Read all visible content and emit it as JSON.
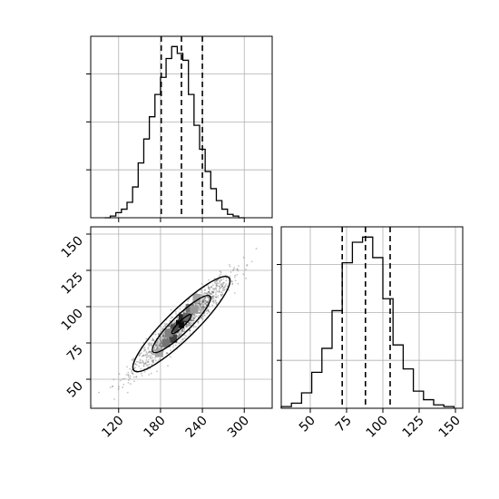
{
  "chart_data": {
    "type": "corner",
    "parameters": [
      "",
      ""
    ],
    "colors": {
      "line": "#000000",
      "grid": "#b0b0b0",
      "background": "#ffffff",
      "scatter": "#555555"
    },
    "grid": true,
    "panels": [
      {
        "id": "hist-x",
        "type": "histogram",
        "position": "top-left",
        "xlim": [
          80,
          340
        ],
        "ylim": [
          0,
          1.06
        ],
        "quantile_lines": [
          181,
          210,
          240
        ],
        "bins": [
          {
            "x0": 100,
            "x1": 108,
            "y": 0.0
          },
          {
            "x0": 108,
            "x1": 116,
            "y": 0.01
          },
          {
            "x0": 116,
            "x1": 124,
            "y": 0.03
          },
          {
            "x0": 124,
            "x1": 132,
            "y": 0.05
          },
          {
            "x0": 132,
            "x1": 140,
            "y": 0.09
          },
          {
            "x0": 140,
            "x1": 148,
            "y": 0.18
          },
          {
            "x0": 148,
            "x1": 156,
            "y": 0.32
          },
          {
            "x0": 156,
            "x1": 164,
            "y": 0.46
          },
          {
            "x0": 164,
            "x1": 172,
            "y": 0.59
          },
          {
            "x0": 172,
            "x1": 180,
            "y": 0.72
          },
          {
            "x0": 180,
            "x1": 188,
            "y": 0.82
          },
          {
            "x0": 188,
            "x1": 196,
            "y": 0.93
          },
          {
            "x0": 196,
            "x1": 204,
            "y": 1.0
          },
          {
            "x0": 204,
            "x1": 212,
            "y": 0.96
          },
          {
            "x0": 212,
            "x1": 220,
            "y": 0.92
          },
          {
            "x0": 220,
            "x1": 228,
            "y": 0.72
          },
          {
            "x0": 228,
            "x1": 236,
            "y": 0.54
          },
          {
            "x0": 236,
            "x1": 244,
            "y": 0.4
          },
          {
            "x0": 244,
            "x1": 252,
            "y": 0.27
          },
          {
            "x0": 252,
            "x1": 260,
            "y": 0.17
          },
          {
            "x0": 260,
            "x1": 268,
            "y": 0.1
          },
          {
            "x0": 268,
            "x1": 276,
            "y": 0.05
          },
          {
            "x0": 276,
            "x1": 284,
            "y": 0.02
          },
          {
            "x0": 284,
            "x1": 292,
            "y": 0.01
          },
          {
            "x0": 292,
            "x1": 300,
            "y": 0.0
          }
        ]
      },
      {
        "id": "scatter-2d",
        "type": "density2d",
        "position": "bottom-left",
        "xlim": [
          80,
          340
        ],
        "ylim": [
          30,
          155
        ],
        "xticks": [
          "120",
          "180",
          "240",
          "300"
        ],
        "xtick_values": [
          120,
          180,
          240,
          300
        ],
        "yticks": [
          "50",
          "75",
          "100",
          "125",
          "150"
        ],
        "ytick_values": [
          50,
          75,
          100,
          125,
          150
        ],
        "mean": [
          210,
          88
        ],
        "sigma": [
          34,
          16
        ],
        "correlation": 0.95,
        "contour_levels": [
          0.4,
          1.2,
          2.0
        ],
        "density_cells": [
          {
            "x": 198,
            "y": 78,
            "v": 0.75
          },
          {
            "x": 208,
            "y": 88,
            "v": 0.95
          },
          {
            "x": 212,
            "y": 92,
            "v": 0.85
          },
          {
            "x": 188,
            "y": 75,
            "v": 0.55
          },
          {
            "x": 222,
            "y": 99,
            "v": 0.55
          },
          {
            "x": 200,
            "y": 85,
            "v": 0.7
          },
          {
            "x": 218,
            "y": 93,
            "v": 0.6
          },
          {
            "x": 178,
            "y": 68,
            "v": 0.35
          },
          {
            "x": 232,
            "y": 106,
            "v": 0.35
          },
          {
            "x": 192,
            "y": 82,
            "v": 0.5
          },
          {
            "x": 228,
            "y": 98,
            "v": 0.4
          }
        ]
      },
      {
        "id": "hist-y",
        "type": "histogram",
        "position": "bottom-right",
        "xlim": [
          30,
          155
        ],
        "ylim": [
          0,
          1.06
        ],
        "xticks": [
          "50",
          "75",
          "100",
          "125",
          "150"
        ],
        "xtick_values": [
          50,
          75,
          100,
          125,
          150
        ],
        "quantile_lines": [
          72,
          88,
          105
        ],
        "bins": [
          {
            "x0": 30,
            "x1": 37,
            "y": 0.01
          },
          {
            "x0": 37,
            "x1": 44,
            "y": 0.03
          },
          {
            "x0": 44,
            "x1": 51,
            "y": 0.09
          },
          {
            "x0": 51,
            "x1": 58,
            "y": 0.21
          },
          {
            "x0": 58,
            "x1": 65,
            "y": 0.35
          },
          {
            "x0": 65,
            "x1": 72,
            "y": 0.57
          },
          {
            "x0": 72,
            "x1": 79,
            "y": 0.85
          },
          {
            "x0": 79,
            "x1": 86,
            "y": 0.97
          },
          {
            "x0": 86,
            "x1": 93,
            "y": 1.0
          },
          {
            "x0": 93,
            "x1": 100,
            "y": 0.88
          },
          {
            "x0": 100,
            "x1": 107,
            "y": 0.64
          },
          {
            "x0": 107,
            "x1": 114,
            "y": 0.37
          },
          {
            "x0": 114,
            "x1": 121,
            "y": 0.23
          },
          {
            "x0": 121,
            "x1": 128,
            "y": 0.1
          },
          {
            "x0": 128,
            "x1": 135,
            "y": 0.05
          },
          {
            "x0": 135,
            "x1": 142,
            "y": 0.02
          },
          {
            "x0": 142,
            "x1": 149,
            "y": 0.01
          }
        ]
      }
    ]
  }
}
